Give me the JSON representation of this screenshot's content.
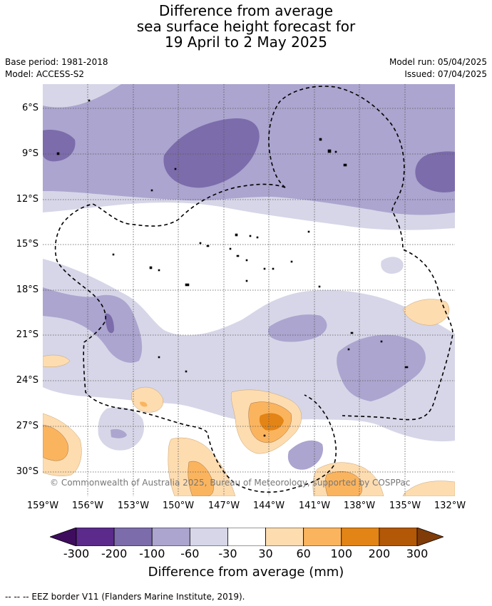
{
  "title": {
    "line1": "Difference from average",
    "line2": "sea surface height forecast for",
    "line3": "19 April to 2 May 2025"
  },
  "meta": {
    "base_period": "Base period: 1981-2018",
    "model": "Model: ACCESS-S2",
    "model_run": "Model run: 05/04/2025",
    "issued": "Issued: 07/04/2025"
  },
  "map": {
    "copyright": "© Commonwealth of Australia 2025, Bureau of Meteorology, supported by COSPPac",
    "lat_labels": [
      "6°S",
      "9°S",
      "12°S",
      "15°S",
      "18°S",
      "21°S",
      "24°S",
      "27°S",
      "30°S"
    ],
    "lon_labels": [
      "159°W",
      "156°W",
      "153°W",
      "150°W",
      "147°W",
      "144°W",
      "141°W",
      "138°W",
      "135°W",
      "132°W"
    ]
  },
  "colorbar": {
    "title": "Difference from average (mm)",
    "labels": [
      "-300",
      "-200",
      "-100",
      "-60",
      "-30",
      "30",
      "60",
      "100",
      "200",
      "300"
    ],
    "colors": [
      "#3f0d5e",
      "#5b2a8a",
      "#7c6cab",
      "#aba5cf",
      "#d6d6e8",
      "#ffffff",
      "#fddcb0",
      "#fbb45e",
      "#e38416",
      "#b35807",
      "#7f3b08"
    ]
  },
  "footer": {
    "legend": "--  --  -- EEZ border V11 (Flanders Marine Institute, 2019)."
  }
}
